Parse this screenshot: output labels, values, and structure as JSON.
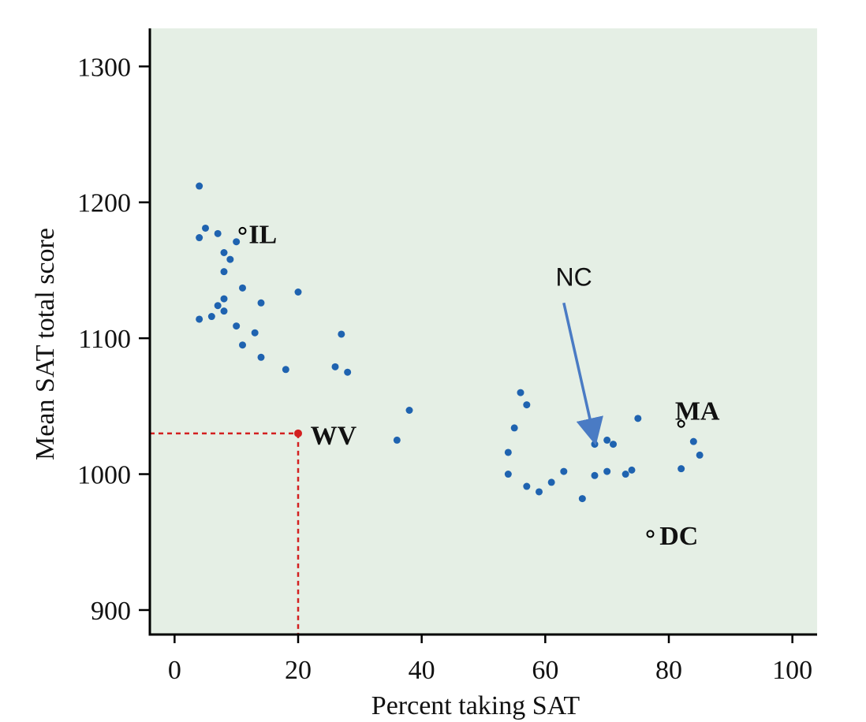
{
  "chart_data": {
    "type": "scatter",
    "xlabel": "Percent taking SAT",
    "ylabel": "Mean SAT total score",
    "xlim": [
      -4,
      104
    ],
    "ylim": [
      882,
      1328
    ],
    "xticks": [
      0,
      20,
      40,
      60,
      80,
      100
    ],
    "yticks": [
      900,
      1000,
      1100,
      1200,
      1300
    ],
    "background_color": "#e5efe5",
    "point_color": "#1f63b0",
    "highlight_color": "#d32020",
    "arrow_color": "#4a7bc4",
    "grid": false,
    "points": [
      {
        "x": 4,
        "y": 1212
      },
      {
        "x": 4,
        "y": 1174
      },
      {
        "x": 5,
        "y": 1181
      },
      {
        "x": 7,
        "y": 1177
      },
      {
        "x": 8,
        "y": 1163
      },
      {
        "x": 9,
        "y": 1158
      },
      {
        "x": 10,
        "y": 1171
      },
      {
        "x": 8,
        "y": 1149
      },
      {
        "x": 11,
        "y": 1137
      },
      {
        "x": 8,
        "y": 1129
      },
      {
        "x": 7,
        "y": 1124
      },
      {
        "x": 8,
        "y": 1120
      },
      {
        "x": 6,
        "y": 1116
      },
      {
        "x": 4,
        "y": 1114
      },
      {
        "x": 10,
        "y": 1109
      },
      {
        "x": 13,
        "y": 1104
      },
      {
        "x": 11,
        "y": 1095
      },
      {
        "x": 14,
        "y": 1126
      },
      {
        "x": 14,
        "y": 1086
      },
      {
        "x": 18,
        "y": 1077
      },
      {
        "x": 20,
        "y": 1134
      },
      {
        "x": 27,
        "y": 1103
      },
      {
        "x": 26,
        "y": 1079
      },
      {
        "x": 28,
        "y": 1075
      },
      {
        "x": 36,
        "y": 1025
      },
      {
        "x": 38,
        "y": 1047
      },
      {
        "x": 56,
        "y": 1060
      },
      {
        "x": 57,
        "y": 1051
      },
      {
        "x": 55,
        "y": 1034
      },
      {
        "x": 54,
        "y": 1016
      },
      {
        "x": 54,
        "y": 1000
      },
      {
        "x": 57,
        "y": 991
      },
      {
        "x": 59,
        "y": 987
      },
      {
        "x": 61,
        "y": 994
      },
      {
        "x": 63,
        "y": 1002
      },
      {
        "x": 66,
        "y": 982
      },
      {
        "x": 68,
        "y": 999
      },
      {
        "x": 68,
        "y": 1022
      },
      {
        "x": 70,
        "y": 1025
      },
      {
        "x": 71,
        "y": 1022
      },
      {
        "x": 70,
        "y": 1002
      },
      {
        "x": 73,
        "y": 1000
      },
      {
        "x": 74,
        "y": 1003
      },
      {
        "x": 75,
        "y": 1041
      },
      {
        "x": 82,
        "y": 1004
      },
      {
        "x": 84,
        "y": 1024
      },
      {
        "x": 85,
        "y": 1014
      }
    ],
    "open_points": [
      {
        "x": 11,
        "y": 1179
      },
      {
        "x": 82,
        "y": 1037
      },
      {
        "x": 77,
        "y": 956
      }
    ],
    "highlight_point": {
      "x": 20,
      "y": 1030
    },
    "labels": [
      {
        "text": "IL",
        "x": 12,
        "y": 1177
      },
      {
        "text": "WV",
        "x": 22,
        "y": 1029
      },
      {
        "text": "MA",
        "x": 81,
        "y": 1047
      },
      {
        "text": "DC",
        "x": 78.5,
        "y": 955
      }
    ],
    "nc_label": {
      "text": "NC",
      "x": 65,
      "y": 1145
    },
    "nc_arrow": {
      "from": [
        63,
        1126
      ],
      "to": [
        68,
        1025
      ]
    }
  }
}
